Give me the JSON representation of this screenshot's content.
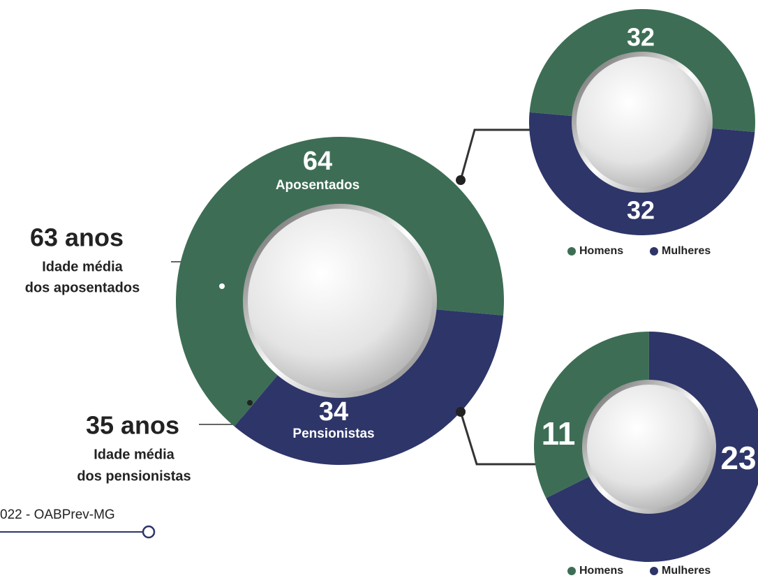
{
  "chart_data": [
    {
      "type": "donut",
      "categories": [
        "Aposentados",
        "Pensionistas"
      ],
      "values": [
        64,
        34
      ],
      "colors": [
        "#3d6e55",
        "#2e3569"
      ]
    },
    {
      "type": "donut",
      "categories": [
        "Homens",
        "Mulheres"
      ],
      "values": [
        32,
        32
      ],
      "colors": [
        "#3d6e55",
        "#2e3569"
      ]
    },
    {
      "type": "donut",
      "categories": [
        "Homens",
        "Mulheres"
      ],
      "values": [
        11,
        23
      ],
      "colors": [
        "#3d6e55",
        "#2e3569"
      ]
    }
  ],
  "annotations": [
    {
      "title": "63 anos",
      "lines": [
        "Idade média",
        "dos aposentados"
      ]
    },
    {
      "title": "35 anos",
      "lines": [
        "Idade média",
        "dos pensionistas"
      ]
    }
  ],
  "footer": "022 - OABPrev-MG"
}
